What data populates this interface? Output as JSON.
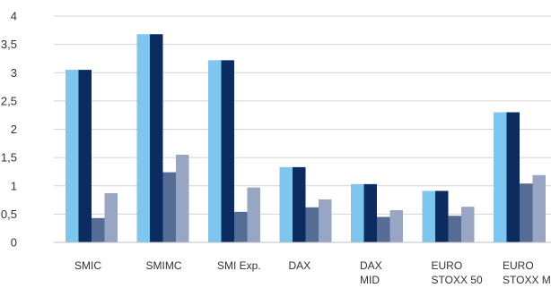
{
  "chart_data": {
    "type": "bar",
    "categories": [
      [
        "SMIC"
      ],
      [
        "SMIMC"
      ],
      [
        "SMI Exp."
      ],
      [
        "DAX"
      ],
      [
        "DAX",
        "MID"
      ],
      [
        "EURO",
        "STOXX 50"
      ],
      [
        "EURO",
        "STOXX MID"
      ]
    ],
    "series": [
      {
        "values": [
          3.05,
          3.68,
          3.22,
          1.33,
          1.03,
          0.91,
          2.3
        ],
        "color": "#7cc6f0"
      },
      {
        "values": [
          3.05,
          3.68,
          3.22,
          1.33,
          1.03,
          0.91,
          2.3
        ],
        "color": "#0c2b5e"
      },
      {
        "values": [
          0.43,
          1.24,
          0.54,
          0.62,
          0.45,
          0.47,
          1.04
        ],
        "color": "#556c95"
      },
      {
        "values": [
          0.87,
          1.55,
          0.97,
          0.76,
          0.57,
          0.63,
          1.19
        ],
        "color": "#98a6c4"
      }
    ],
    "y_ticks": [
      "0",
      "0,5",
      "1",
      "1,5",
      "2",
      "2,5",
      "3",
      "3,5",
      "4"
    ],
    "y_tick_values": [
      0,
      0.5,
      1,
      1.5,
      2,
      2.5,
      3,
      3.5,
      4
    ],
    "ylim": [
      0,
      4
    ],
    "grid": true,
    "legend": "none"
  }
}
